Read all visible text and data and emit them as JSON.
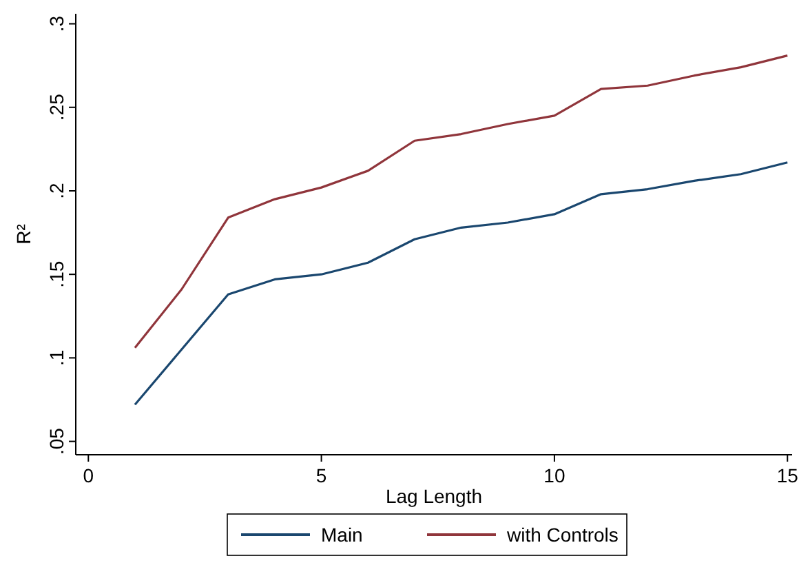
{
  "chart_data": {
    "type": "line",
    "xlabel": "Lag Length",
    "ylabel": "R²",
    "x": [
      1,
      2,
      3,
      4,
      5,
      6,
      7,
      8,
      9,
      10,
      11,
      12,
      13,
      14,
      15
    ],
    "series": [
      {
        "name": "Main",
        "color": "#1a476f",
        "values": [
          0.072,
          0.105,
          0.138,
          0.147,
          0.15,
          0.157,
          0.171,
          0.178,
          0.181,
          0.186,
          0.198,
          0.201,
          0.206,
          0.21,
          0.217
        ]
      },
      {
        "name": "with Controls",
        "color": "#90353b",
        "values": [
          0.106,
          0.141,
          0.184,
          0.195,
          0.202,
          0.212,
          0.23,
          0.234,
          0.24,
          0.245,
          0.261,
          0.263,
          0.269,
          0.274,
          0.281
        ]
      }
    ],
    "xlim": [
      -0.27,
      15.1
    ],
    "xticks": [
      0,
      5,
      10,
      15
    ],
    "ylim": [
      0.042,
      0.306
    ],
    "yticks": [
      {
        "value": 0.05,
        "label": ".05"
      },
      {
        "value": 0.1,
        "label": ".1"
      },
      {
        "value": 0.15,
        "label": ".15"
      },
      {
        "value": 0.2,
        "label": ".2"
      },
      {
        "value": 0.25,
        "label": ".25"
      },
      {
        "value": 0.3,
        "label": ".3"
      }
    ],
    "grid": false,
    "legend": "bottom",
    "marker": "none",
    "line_style": "solid"
  }
}
